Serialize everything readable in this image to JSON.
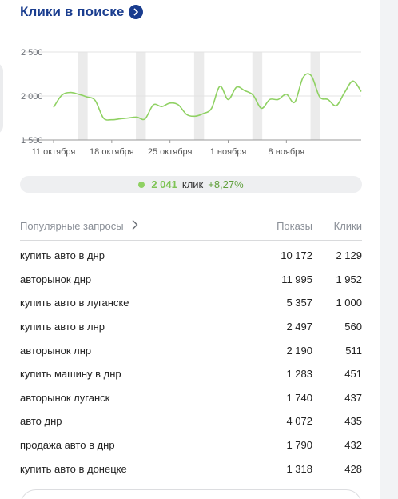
{
  "widget": {
    "title": "Клики в поиске",
    "title_icon": "chevron-right-circle-icon",
    "accent_color": "#1a3d8f"
  },
  "chart_data": {
    "type": "line",
    "x_tick_labels": [
      "11 октября",
      "18 октября",
      "25 октября",
      "1 ноября",
      "8 ноября"
    ],
    "y_tick_labels": [
      "2 500",
      "2 000",
      "1 500"
    ],
    "y_ticks": [
      2500,
      2000,
      1500
    ],
    "ylim": [
      1500,
      2500
    ],
    "line_color": "#8fd163",
    "band_color": "#ebebeb",
    "weekend_bands": [
      [
        3,
        4
      ],
      [
        10,
        11
      ],
      [
        17,
        18
      ],
      [
        24,
        25
      ],
      [
        31,
        32
      ],
      [
        38,
        39
      ]
    ],
    "series": [
      {
        "values": [
          1870,
          2010,
          2040,
          2020,
          1990,
          1950,
          1750,
          1730,
          1740,
          1750,
          1760,
          1740,
          1900,
          1880,
          1920,
          1900,
          1790,
          1770,
          1800,
          1860,
          2110,
          1960,
          2100,
          2060,
          2010,
          1860,
          1960,
          1960,
          2020,
          1930,
          2210,
          2230,
          1990,
          1960,
          1890,
          2040,
          2170,
          2050
        ]
      }
    ]
  },
  "summary": {
    "value": "2 041",
    "unit": "клик",
    "delta": "+8,27%"
  },
  "table": {
    "header": {
      "query": "Популярные запросы",
      "shows": "Показы",
      "clicks": "Клики"
    },
    "rows": [
      {
        "query": "купить авто в днр",
        "shows": "10 172",
        "clicks": "2 129"
      },
      {
        "query": "авторынок днр",
        "shows": "11 995",
        "clicks": "1 952"
      },
      {
        "query": "купить авто в луганске",
        "shows": "5 357",
        "clicks": "1 000"
      },
      {
        "query": "купить авто в лнр",
        "shows": "2 497",
        "clicks": "560"
      },
      {
        "query": "авторынок лнр",
        "shows": "2 190",
        "clicks": "511"
      },
      {
        "query": "купить машину в днр",
        "shows": "1 283",
        "clicks": "451"
      },
      {
        "query": "авторынок луганск",
        "shows": "1 740",
        "clicks": "437"
      },
      {
        "query": "авто днр",
        "shows": "4 072",
        "clicks": "435"
      },
      {
        "query": "продажа авто в днр",
        "shows": "1 790",
        "clicks": "432"
      },
      {
        "query": "купить авто в донецке",
        "shows": "1 318",
        "clicks": "428"
      }
    ]
  }
}
